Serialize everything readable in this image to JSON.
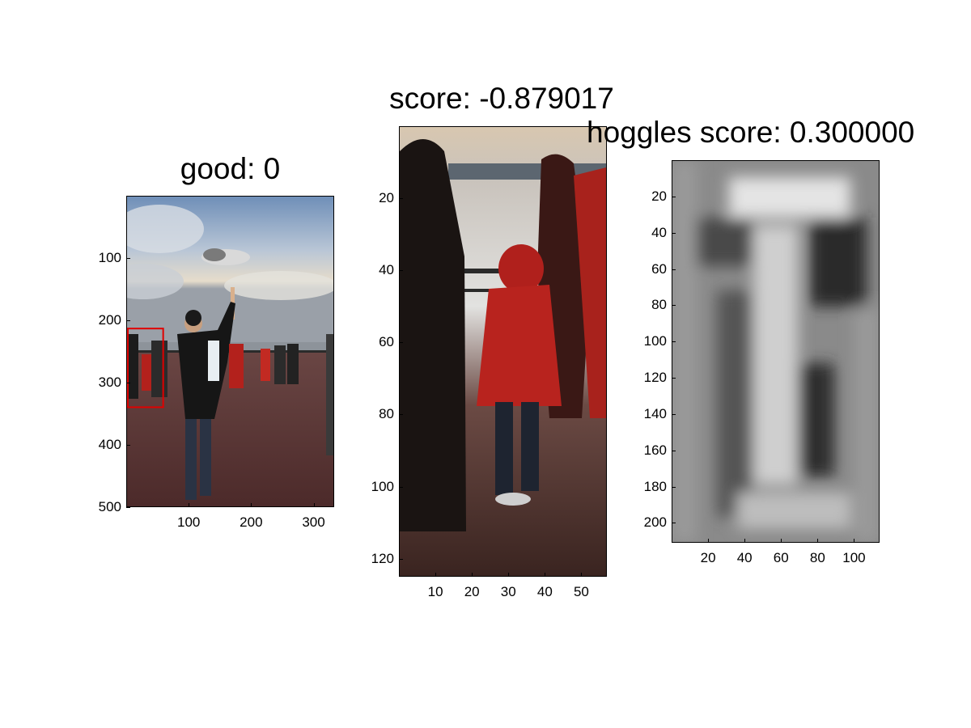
{
  "chart_data": [
    {
      "type": "image",
      "title": "good: 0",
      "y_ticks": [
        100,
        200,
        300,
        400,
        500
      ],
      "x_ticks": [
        100,
        200,
        300
      ],
      "xlim": [
        0,
        333
      ],
      "ylim": [
        0,
        500
      ],
      "image_description": "Photo: man on brick waterfront promenade holding a seagull up at arm's length, cloudy sky, people in red and dark coats; red detection box on left edge",
      "detection_box": {
        "x": [
          0,
          57
        ],
        "y": [
          213,
          340
        ],
        "color": "#e00000"
      }
    },
    {
      "type": "image",
      "title": "score: -0.879017",
      "y_ticks": [
        20,
        40,
        60,
        80,
        100,
        120
      ],
      "x_ticks": [
        10,
        20,
        30,
        40,
        50
      ],
      "xlim": [
        0,
        57
      ],
      "ylim": [
        0,
        125
      ],
      "image_description": "Cropped patch: dark figures and a child in a red hooded coat at the waterfront railing"
    },
    {
      "type": "heatmap",
      "title": "hoggles score: 0.300000",
      "y_ticks": [
        20,
        40,
        60,
        80,
        100,
        120,
        140,
        160,
        180,
        200
      ],
      "x_ticks": [
        20,
        40,
        60,
        80,
        100
      ],
      "xlim": [
        0,
        114
      ],
      "ylim": [
        0,
        211
      ],
      "colormap": "gray",
      "image_description": "Blurry grayscale HOG inversion showing a vertical person-shaped silhouette"
    }
  ],
  "colors": {
    "box": "#e00000",
    "axis": "#000000",
    "background": "#ffffff"
  }
}
